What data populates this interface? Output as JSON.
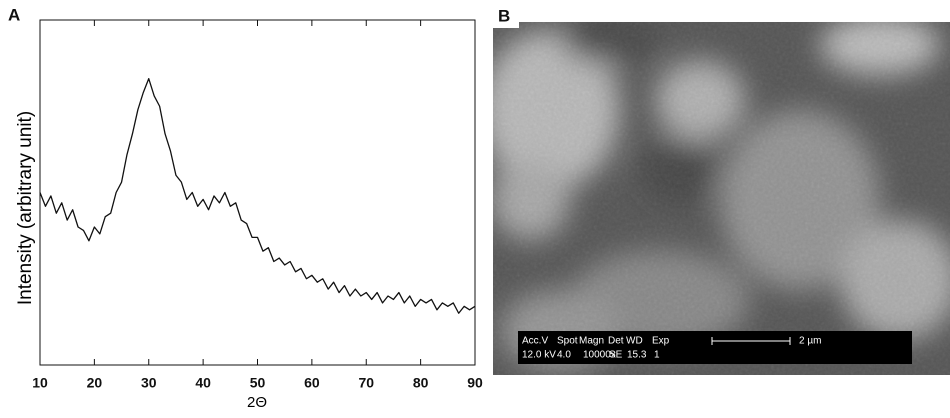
{
  "chart_data": {
    "type": "line",
    "panel_label": "A",
    "xlabel": "2Θ",
    "ylabel": "Intensity (arbitrary unit)",
    "x": [
      10,
      11,
      12,
      13,
      14,
      15,
      16,
      17,
      18,
      19,
      20,
      21,
      22,
      23,
      24,
      25,
      26,
      27,
      28,
      29,
      30,
      31,
      32,
      33,
      34,
      35,
      36,
      37,
      38,
      39,
      40,
      41,
      42,
      43,
      44,
      45,
      46,
      47,
      48,
      49,
      50,
      51,
      52,
      53,
      54,
      55,
      56,
      57,
      58,
      59,
      60,
      61,
      62,
      63,
      64,
      65,
      66,
      67,
      68,
      69,
      70,
      71,
      72,
      73,
      74,
      75,
      76,
      77,
      78,
      79,
      80,
      81,
      82,
      83,
      84,
      85,
      86,
      87,
      88,
      89,
      90
    ],
    "values": [
      50,
      46,
      49,
      44,
      47,
      42,
      45,
      40,
      39,
      36,
      40,
      38,
      43,
      44,
      50,
      53,
      61,
      67,
      74,
      79,
      83,
      78,
      75,
      67,
      62,
      55,
      53,
      48,
      50,
      46,
      48,
      45,
      49,
      47,
      50,
      46,
      47,
      42,
      41,
      37,
      37,
      33,
      34,
      30,
      31,
      29,
      30,
      27,
      28,
      25,
      26,
      24,
      25,
      22,
      24,
      21,
      23,
      20,
      22,
      20,
      21,
      19,
      21,
      18,
      20,
      19,
      21,
      18,
      20,
      17,
      19,
      18,
      19,
      16,
      18,
      17,
      18,
      15,
      17,
      16,
      17
    ],
    "color": "#111111",
    "xlim": [
      10,
      90
    ],
    "xticks": [
      10,
      20,
      30,
      40,
      50,
      60,
      70,
      80,
      90
    ],
    "ylim": [
      0,
      100
    ]
  },
  "image_panel": {
    "label": "B",
    "info_bar": {
      "headers": [
        "Acc.V",
        "Spot",
        "Magn",
        "Det",
        "WD",
        "Exp"
      ],
      "values": [
        "12.0 kV",
        "4.0",
        "10000x",
        "SE",
        "15.3",
        "1"
      ],
      "scale_label": "2 µm"
    }
  }
}
